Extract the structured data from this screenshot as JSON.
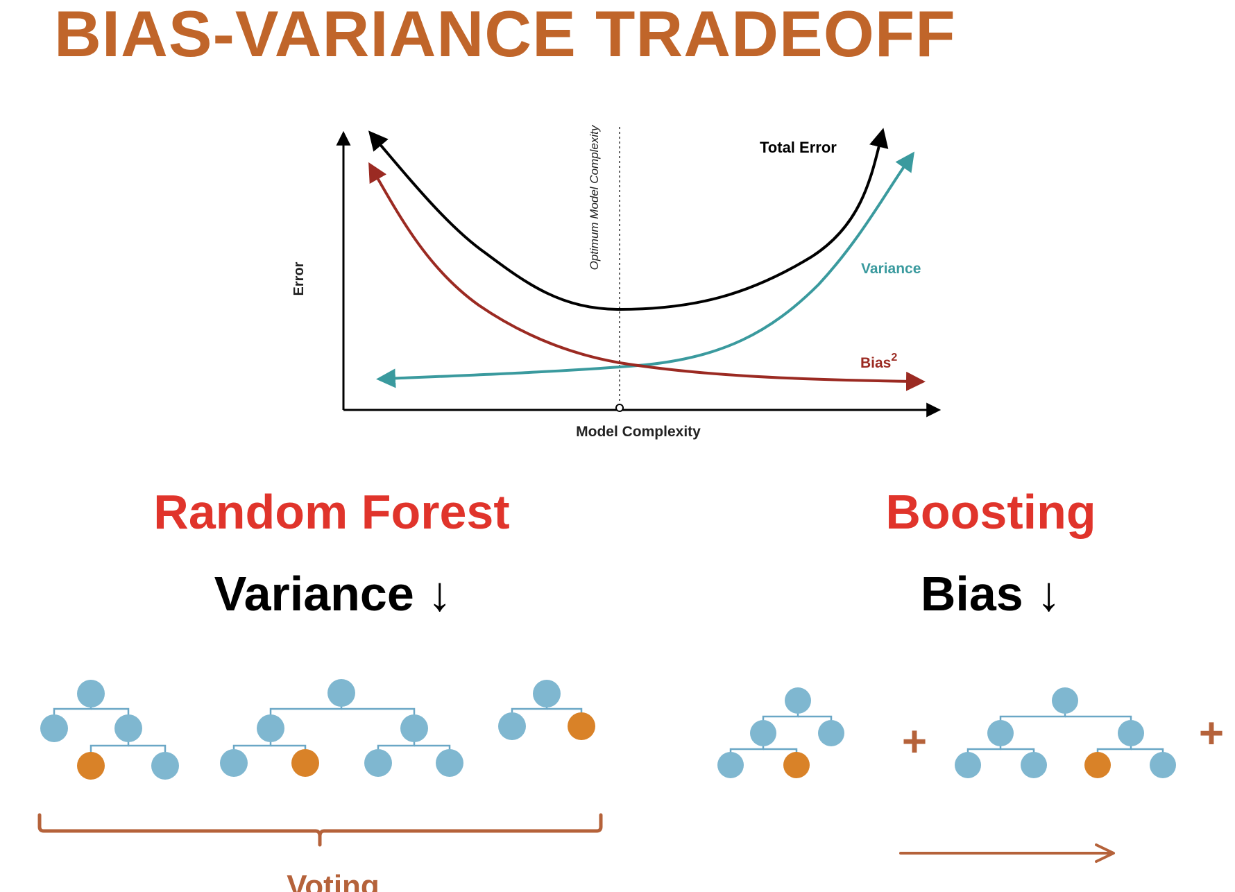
{
  "page_title": "BIAS-VARIANCE TRADEOFF",
  "colors": {
    "title": "#c0652a",
    "heading": "#e0342b",
    "node_blue": "#7fb7d0",
    "node_orange": "#d98228",
    "edge": "#6aa7c6",
    "bracket": "#b5623a",
    "total_error": "#000000",
    "variance": "#3a9a9e",
    "bias": "#9b2a22"
  },
  "chart": {
    "axis_y_label": "Error",
    "axis_x_label": "Model Complexity",
    "optimum_label": "Optimum Model Complexity",
    "total_error_label": "Total Error",
    "variance_label": "Variance",
    "bias_label": "Bias",
    "bias_superscript": "2"
  },
  "random_forest": {
    "heading": "Random Forest",
    "effect": "Variance ↓",
    "footer": "Voting"
  },
  "boosting": {
    "heading": "Boosting",
    "effect": "Bias ↓",
    "plus_symbol": "+"
  }
}
